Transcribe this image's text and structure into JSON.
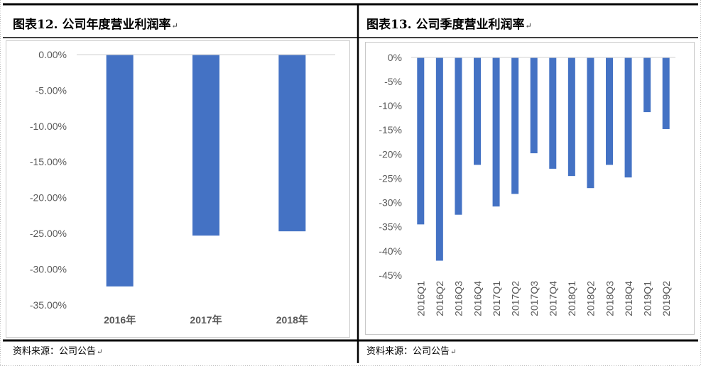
{
  "left_panel": {
    "title": "图表12.  公司年度营业利润率",
    "source": "资料来源：公司公告"
  },
  "right_panel": {
    "title": "图表13.  公司季度营业利润率",
    "source": "资料来源：公司公告"
  },
  "colors": {
    "bar": "#4472C4",
    "axis": "#d9d9d9",
    "tick_text": "#595959"
  },
  "chart_data": [
    {
      "type": "bar",
      "categories": [
        "2016年",
        "2017年",
        "2018年"
      ],
      "values": [
        -32.4,
        -25.3,
        -24.7
      ],
      "ylim": [
        -35,
        0
      ],
      "yticks": [
        "0.00%",
        "-5.00%",
        "-10.00%",
        "-15.00%",
        "-20.00%",
        "-25.00%",
        "-30.00%",
        "-35.00%"
      ],
      "grid": false,
      "legend": "none"
    },
    {
      "type": "bar",
      "categories": [
        "2016Q1",
        "2016Q2",
        "2016Q3",
        "2016Q4",
        "2017Q1",
        "2017Q2",
        "2017Q3",
        "2017Q4",
        "2018Q1",
        "2018Q2",
        "2018Q3",
        "2018Q4",
        "2019Q1",
        "2019Q2"
      ],
      "values": [
        -34.5,
        -42.0,
        -32.5,
        -22.2,
        -30.8,
        -28.2,
        -19.8,
        -23.0,
        -24.5,
        -27.0,
        -22.2,
        -24.8,
        -11.3,
        -14.8
      ],
      "ylim": [
        -45,
        0
      ],
      "yticks": [
        "0%",
        "-5%",
        "-10%",
        "-15%",
        "-20%",
        "-25%",
        "-30%",
        "-35%",
        "-40%",
        "-45%"
      ],
      "grid": false,
      "legend": "none"
    }
  ]
}
